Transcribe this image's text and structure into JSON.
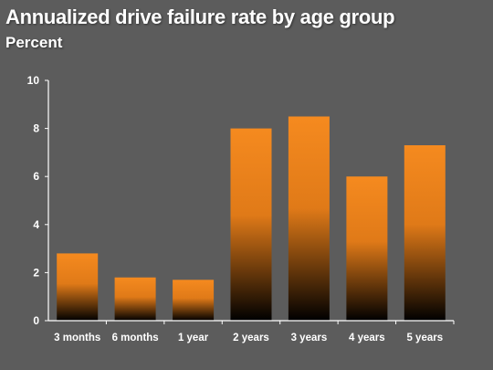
{
  "chart_data": {
    "type": "bar",
    "title": "Annualized drive failure rate by age group",
    "ylabel": "Percent",
    "xlabel": "",
    "categories": [
      "3 months",
      "6 months",
      "1 year",
      "2 years",
      "3 years",
      "4 years",
      "5 years"
    ],
    "values": [
      2.8,
      1.8,
      1.7,
      8.0,
      8.5,
      6.0,
      7.3
    ],
    "ylim": [
      0,
      10
    ],
    "yticks": [
      0,
      2,
      4,
      6,
      8,
      10
    ],
    "grid": false,
    "legend": "none",
    "colors": {
      "bar_top": "#f58a1f",
      "bar_bottom": "#000000",
      "background": "#5c5c5c",
      "axis": "#ffffff"
    }
  }
}
